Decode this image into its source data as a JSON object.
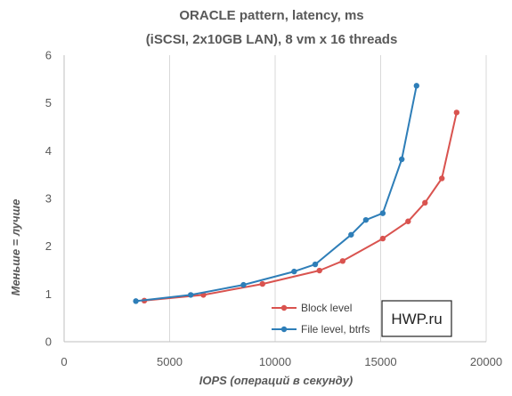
{
  "chart_data": {
    "type": "line",
    "title_lines": [
      "ORACLE pattern, latency, ms",
      "(iSCSI, 2x10GB LAN), 8 vm x 16 threads"
    ],
    "xlabel": "IOPS (операций в секунду)",
    "ylabel": "Меньше = лучше",
    "xlim": [
      0,
      20000
    ],
    "ylim": [
      0,
      6
    ],
    "x_ticks": [
      0,
      5000,
      10000,
      15000,
      20000
    ],
    "y_ticks": [
      0,
      1,
      2,
      3,
      4,
      5,
      6
    ],
    "grid": "vertical",
    "legend_position": "bottom-right",
    "series": [
      {
        "name": "Block level",
        "color": "#d9534f",
        "x": [
          3800,
          6600,
          9400,
          12100,
          13200,
          15100,
          16300,
          17100,
          17900,
          18600
        ],
        "y": [
          0.86,
          0.98,
          1.21,
          1.49,
          1.69,
          2.16,
          2.52,
          2.91,
          3.42,
          4.8
        ]
      },
      {
        "name": "File level, btrfs",
        "color": "#2e7eb8",
        "x": [
          3400,
          6000,
          8500,
          10900,
          11900,
          13600,
          14300,
          15100,
          16000,
          16700
        ],
        "y": [
          0.85,
          0.98,
          1.19,
          1.47,
          1.62,
          2.24,
          2.55,
          2.69,
          3.82,
          5.36
        ]
      }
    ]
  },
  "watermark": {
    "text": "HWP.ru"
  }
}
